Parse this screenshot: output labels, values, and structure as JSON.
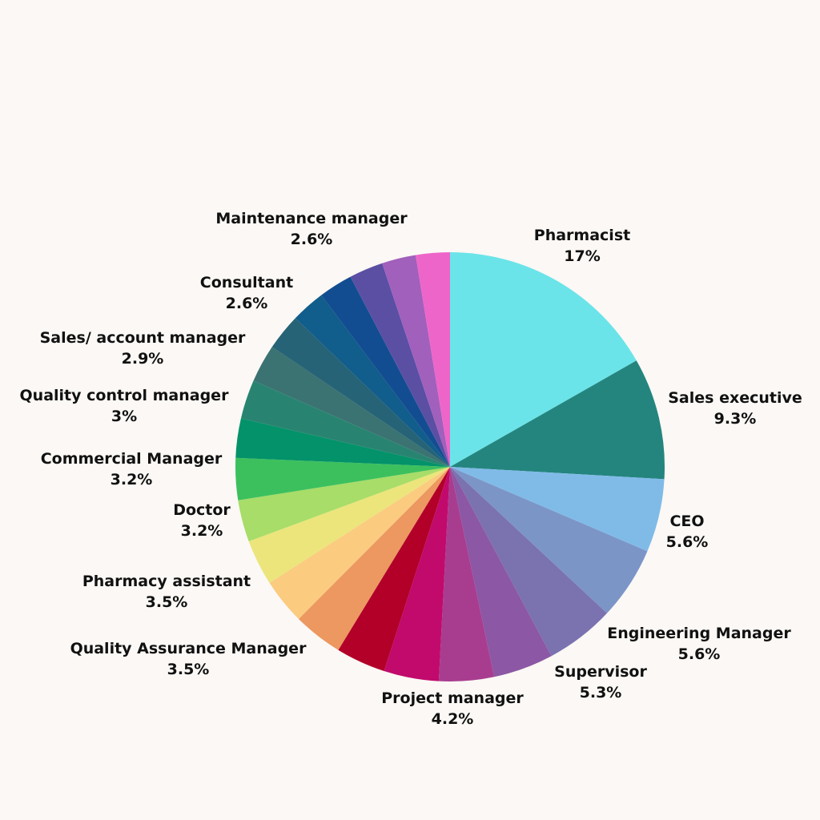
{
  "chart_data": {
    "type": "pie",
    "title": "",
    "slices": [
      {
        "label": "Pharmacist",
        "value": 17,
        "display": "17%",
        "color": "#6be4e9"
      },
      {
        "label": "Sales executive",
        "value": 9.3,
        "display": "9.3%",
        "color": "#24857f"
      },
      {
        "label": "CEO",
        "value": 5.6,
        "display": "5.6%",
        "color": "#80bbe8"
      },
      {
        "label": "Engineering Manager",
        "value": 5.6,
        "display": "5.6%",
        "color": "#7b95c7"
      },
      {
        "label": "Supervisor",
        "value": 5.3,
        "display": "5.3%",
        "color": "#7b72b0"
      },
      {
        "label": null,
        "value": 4.6,
        "display": null,
        "color": "#8c57a4"
      },
      {
        "label": null,
        "value": 4.2,
        "display": null,
        "color": "#a83d90"
      },
      {
        "label": "Project manager",
        "value": 4.2,
        "display": "4.2%",
        "color": "#c10a6c"
      },
      {
        "label": null,
        "value": 3.8,
        "display": null,
        "color": "#b20029"
      },
      {
        "label": null,
        "value": 3.8,
        "display": null,
        "color": "#ec9860"
      },
      {
        "label": "Quality Assurance Manager",
        "value": 3.5,
        "display": "3.5%",
        "color": "#fbcb80"
      },
      {
        "label": "Pharmacy assistant",
        "value": 3.5,
        "display": "3.5%",
        "color": "#ebe57c"
      },
      {
        "label": "Doctor",
        "value": 3.2,
        "display": "3.2%",
        "color": "#a7dd68"
      },
      {
        "label": "Commercial Manager",
        "value": 3.2,
        "display": "3.2%",
        "color": "#3cc05e"
      },
      {
        "label": null,
        "value": 3.0,
        "display": null,
        "color": "#039269"
      },
      {
        "label": "Quality control manager",
        "value": 3.0,
        "display": "3%",
        "color": "#288471"
      },
      {
        "label": "Sales/ account manager",
        "value": 2.9,
        "display": "2.9%",
        "color": "#3b7272"
      },
      {
        "label": null,
        "value": 2.8,
        "display": null,
        "color": "#266376"
      },
      {
        "label": "Consultant",
        "value": 2.6,
        "display": "2.6%",
        "color": "#115d8b"
      },
      {
        "label": null,
        "value": 2.6,
        "display": null,
        "color": "#134d91"
      },
      {
        "label": null,
        "value": 2.6,
        "display": null,
        "color": "#5b4fa4"
      },
      {
        "label": null,
        "value": 2.6,
        "display": null,
        "color": "#a160bc"
      },
      {
        "label": "Maintenance manager",
        "value": 2.6,
        "display": "2.6%",
        "color": "#ee65c9"
      }
    ]
  }
}
